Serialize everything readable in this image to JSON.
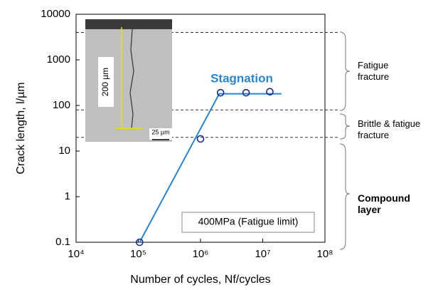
{
  "chart_data": {
    "type": "scatter",
    "x_label": "Number of cycles, Nf/cycles",
    "y_label": "Crack length, l/µm",
    "xlog": true,
    "ylog": true,
    "xlim": [
      10000,
      100000000
    ],
    "ylim": [
      0.1,
      10000
    ],
    "xticks": [
      {
        "value": 10000,
        "label": "10⁴"
      },
      {
        "value": 100000,
        "label": "10⁵"
      },
      {
        "value": 1000000,
        "label": "10⁶"
      },
      {
        "value": 10000000,
        "label": "10⁷"
      },
      {
        "value": 100000000,
        "label": "10⁸"
      }
    ],
    "yticks": [
      0.1,
      1,
      10,
      100,
      1000,
      10000
    ],
    "series": [
      {
        "color": "#1c2f86",
        "marker": "open-circle",
        "x": [
          105000,
          1000000,
          2100000,
          5400000,
          13000000
        ],
        "y": [
          0.1,
          18.5,
          190,
          190,
          200
        ]
      },
      {
        "color": "#2a85cf",
        "marker": "line",
        "x": [
          105000,
          2000000,
          20000000
        ],
        "y": [
          0.1,
          180,
          180
        ]
      }
    ],
    "reference_lines": [
      4000,
      80,
      20
    ],
    "annotations": {
      "stagnation": "Stagnation",
      "condition": "400MPa (Fatigue limit)"
    },
    "regions": [
      "Fatigue fracture",
      "Brittle & fatigue fracture",
      "Compound layer"
    ],
    "inset": {
      "depth_label": "200 µm",
      "scale_label": "25 µm"
    }
  }
}
